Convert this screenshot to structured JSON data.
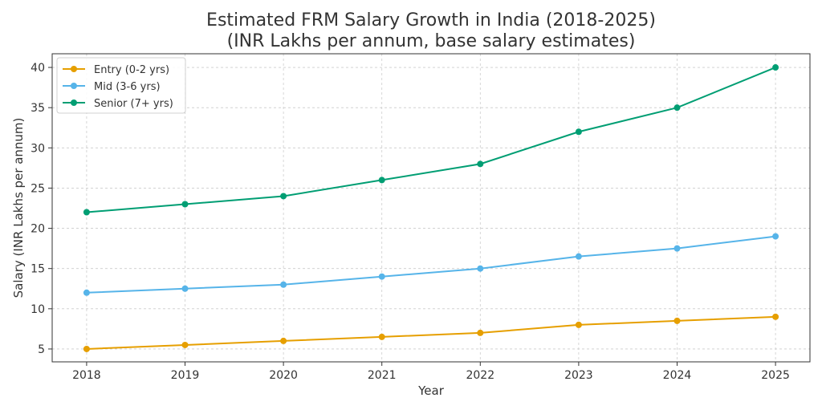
{
  "chart_data": {
    "type": "line",
    "title": "Estimated FRM Salary Growth in India (2018-2025)",
    "subtitle": "(INR Lakhs per annum, base salary estimates)",
    "xlabel": "Year",
    "ylabel": "Salary (INR Lakhs per annum)",
    "x": [
      2018,
      2019,
      2020,
      2021,
      2022,
      2023,
      2024,
      2025
    ],
    "xlim": [
      2017.65,
      2025.35
    ],
    "ylim": [
      3.4,
      41.7
    ],
    "yticks": [
      5,
      10,
      15,
      20,
      25,
      30,
      35,
      40
    ],
    "grid": true,
    "legend_position": "top-left",
    "series": [
      {
        "name": "Entry (0-2 yrs)",
        "color": "#E69F00",
        "values": [
          5,
          5.5,
          6,
          6.5,
          7,
          8,
          8.5,
          9
        ]
      },
      {
        "name": "Mid (3-6 yrs)",
        "color": "#56B4E9",
        "values": [
          12,
          12.5,
          13,
          14,
          15,
          16.5,
          17.5,
          19
        ]
      },
      {
        "name": "Senior (7+ yrs)",
        "color": "#009E73",
        "values": [
          22,
          23,
          24,
          26,
          28,
          32,
          35,
          40
        ]
      }
    ]
  }
}
